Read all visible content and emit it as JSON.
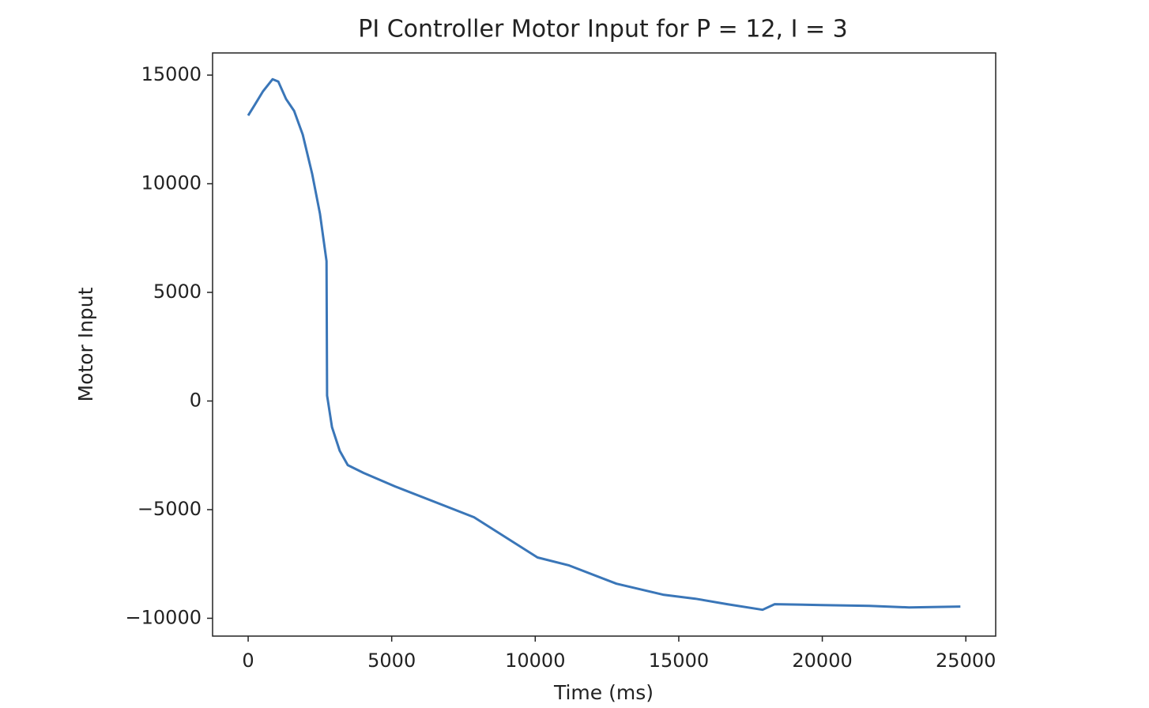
{
  "chart_data": {
    "type": "line",
    "title": "PI Controller Motor Input for P = 12, I = 3",
    "x_label": "Time (ms)",
    "y_label": "Motor Input",
    "x": [
      0,
      220,
      520,
      850,
      1050,
      1320,
      1600,
      1900,
      2230,
      2500,
      2730,
      2750,
      2780,
      2920,
      3190,
      3470,
      4020,
      5120,
      7870,
      10080,
      11180,
      12830,
      14480,
      15580,
      16690,
      17920,
      18340,
      19990,
      21640,
      23020,
      24810
    ],
    "values": [
      13140,
      13610,
      14260,
      14810,
      14700,
      13900,
      13350,
      12260,
      10440,
      8620,
      6440,
      250,
      0,
      -1200,
      -2290,
      -2950,
      -3310,
      -3930,
      -5350,
      -7200,
      -7570,
      -8410,
      -8920,
      -9100,
      -9350,
      -9610,
      -9350,
      -9390,
      -9430,
      -9500,
      -9460
    ],
    "color": "#3a76b8",
    "xlim": [
      -1240,
      26040
    ],
    "ylim": [
      -10820,
      16020
    ],
    "xticks": [
      0,
      5000,
      10000,
      15000,
      20000,
      25000
    ],
    "yticks": [
      {
        "value": -10000,
        "label": "−10000"
      },
      {
        "value": -5000,
        "label": "−5000"
      },
      0,
      5000,
      10000,
      15000
    ],
    "grid": false
  }
}
